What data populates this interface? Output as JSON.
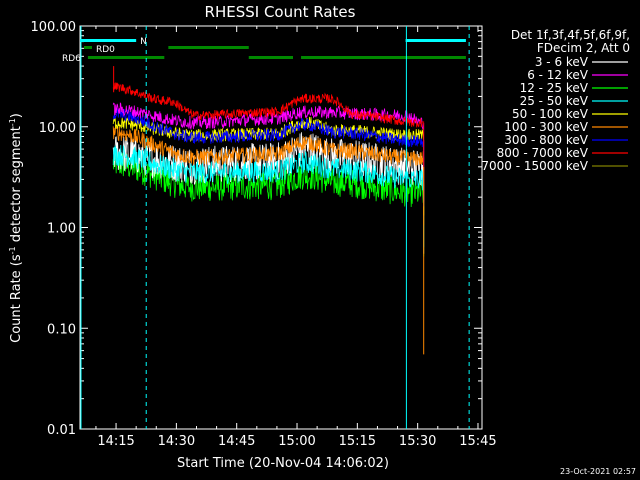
{
  "chart_data": {
    "type": "line",
    "title": "RHESSI Count Rates",
    "xlabel": "Start Time (20-Nov-04 14:06:02)",
    "ylabel_pre": "Count Rate (s",
    "ylabel_exp": "-1",
    "ylabel_post": " detector segment",
    "ylabel_exp2": "-1",
    "ylabel_end": ")",
    "y_scale": "log",
    "ylim": [
      0.01,
      100
    ],
    "xlim": [
      "14:06:02",
      "15:46"
    ],
    "x_ticks": [
      "14:15",
      "14:30",
      "14:45",
      "15:00",
      "15:15",
      "15:30",
      "15:45"
    ],
    "y_ticks": [
      "100.00",
      "10.00",
      "1.00",
      "0.10",
      "0.01"
    ],
    "legend_title_1": "Det 1f,3f,4f,5f,6f,9f,",
    "legend_title_2": "FDecim 2, Att 0",
    "legend_placement": "right",
    "series": [
      {
        "name": "3 - 6 keV",
        "color": "#ffffff",
        "level": 5.5,
        "noise": 0.12,
        "points": [
          [
            "14:14",
            5.5
          ],
          [
            "14:35",
            4.2
          ],
          [
            "14:54",
            4.5
          ],
          [
            "15:02",
            6.0
          ],
          [
            "15:10",
            5.0
          ],
          [
            "15:30",
            4.0
          ]
        ]
      },
      {
        "name": "6 - 12 keV",
        "color": "#ff00ff",
        "level": 15,
        "noise": 0.04,
        "points": [
          [
            "14:14",
            15
          ],
          [
            "14:35",
            11
          ],
          [
            "14:54",
            12
          ],
          [
            "15:02",
            14
          ],
          [
            "15:27",
            13
          ],
          [
            "15:31",
            11
          ]
        ]
      },
      {
        "name": "12 - 25 keV",
        "color": "#00ff00",
        "level": 4.3,
        "noise": 0.09,
        "points": [
          [
            "14:14",
            4.3
          ],
          [
            "14:35",
            2.5
          ],
          [
            "14:54",
            2.6
          ],
          [
            "15:02",
            3.3
          ],
          [
            "15:10",
            2.8
          ],
          [
            "15:30",
            2.2
          ]
        ]
      },
      {
        "name": "25 - 50 keV",
        "color": "#00ffff",
        "level": 5.3,
        "noise": 0.07,
        "points": [
          [
            "14:14",
            5.3
          ],
          [
            "14:35",
            3.5
          ],
          [
            "14:54",
            3.6
          ],
          [
            "15:02",
            4.4
          ],
          [
            "15:10",
            3.8
          ],
          [
            "15:30",
            3.0
          ]
        ]
      },
      {
        "name": "50 - 100 keV",
        "color": "#ffff00",
        "level": 11,
        "noise": 0.04,
        "points": [
          [
            "14:14",
            11
          ],
          [
            "14:35",
            8.2
          ],
          [
            "14:54",
            8.5
          ],
          [
            "15:02",
            11
          ],
          [
            "15:10",
            9.2
          ],
          [
            "15:30",
            8.2
          ]
        ]
      },
      {
        "name": "100 - 300 keV",
        "color": "#ff8800",
        "level": 8.8,
        "noise": 0.05,
        "points": [
          [
            "14:14",
            8.8
          ],
          [
            "14:35",
            5.0
          ],
          [
            "14:54",
            5.3
          ],
          [
            "15:02",
            7.0
          ],
          [
            "15:10",
            5.8
          ],
          [
            "15:30",
            4.8
          ]
        ]
      },
      {
        "name": "300 - 800 keV",
        "color": "#0000ff",
        "level": 13.5,
        "noise": 0.04,
        "points": [
          [
            "14:14",
            13.5
          ],
          [
            "14:35",
            7.8
          ],
          [
            "14:54",
            8.2
          ],
          [
            "15:02",
            10.5
          ],
          [
            "15:10",
            8.8
          ],
          [
            "15:30",
            7.2
          ]
        ]
      },
      {
        "name": "800 - 7000 keV",
        "color": "#ff0000",
        "level": 25,
        "noise": 0.03,
        "points": [
          [
            "14:14",
            25
          ],
          [
            "14:28",
            18
          ],
          [
            "14:35",
            13
          ],
          [
            "14:54",
            14
          ],
          [
            "15:02",
            19
          ],
          [
            "15:08",
            19
          ],
          [
            "15:15",
            13
          ],
          [
            "15:30",
            11
          ]
        ]
      },
      {
        "name": "7000 - 15000 keV",
        "color": "#808000",
        "level": 0,
        "noise": 0,
        "points": []
      }
    ],
    "attenuator_bars": [
      {
        "label": "",
        "color": "#00ffff",
        "segments": [
          [
            "14:06",
            "14:20"
          ],
          [
            "15:27",
            "15:42"
          ]
        ],
        "level": "top"
      },
      {
        "label": "RD0",
        "color": "#008800",
        "segments": [
          [
            "14:28",
            "14:48"
          ]
        ],
        "level": "mid"
      },
      {
        "label": "RD6",
        "color": "#008800",
        "segments": [
          [
            "14:08",
            "14:27"
          ],
          [
            "14:48",
            "14:59"
          ],
          [
            "15:01",
            "15:42"
          ]
        ],
        "level": "low"
      }
    ],
    "bar_labels": {
      "top_n": "N",
      "mid": "RD0",
      "low": "RD6"
    },
    "vertical_markers": [
      {
        "time": "14:06",
        "style": "solid",
        "color": "#00ffff"
      },
      {
        "time": "14:22",
        "style": "dashed",
        "color": "#00ffff"
      },
      {
        "time": "15:27",
        "style": "solid",
        "color": "#00ffff"
      },
      {
        "time": "15:42",
        "style": "dashed",
        "color": "#00ffff"
      }
    ]
  },
  "timestamp": "23-Oct-2021 02:57"
}
